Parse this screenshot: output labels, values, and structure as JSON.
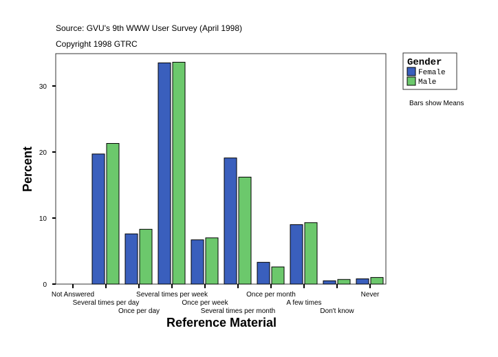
{
  "chart_data": {
    "type": "bar",
    "title": "Source: GVU's 9th WWW User Survey (April 1998)",
    "subtitle": "Copyright 1998 GTRC",
    "xlabel": "Reference Material",
    "ylabel": "Percent",
    "note": "Bars show Means",
    "ylim": [
      0,
      35
    ],
    "yticks": [
      0,
      10,
      20,
      30
    ],
    "grid": false,
    "legend": {
      "title": "Gender",
      "placement": "right"
    },
    "categories": [
      "Not Answered",
      "Several times per day",
      "Once per day",
      "Several times per week",
      "Once per week",
      "Several times per month",
      "Once per month",
      "A few times",
      "Don't know",
      "Never"
    ],
    "series": [
      {
        "name": "Female",
        "color": "#3a5fbd",
        "values": [
          0,
          19.7,
          7.6,
          33.5,
          6.7,
          19.1,
          3.3,
          9.0,
          0.5,
          0.8
        ]
      },
      {
        "name": "Male",
        "color": "#6cc86c",
        "values": [
          0,
          21.3,
          8.3,
          33.6,
          7.0,
          16.2,
          2.6,
          9.3,
          0.7,
          1.0
        ]
      }
    ]
  }
}
